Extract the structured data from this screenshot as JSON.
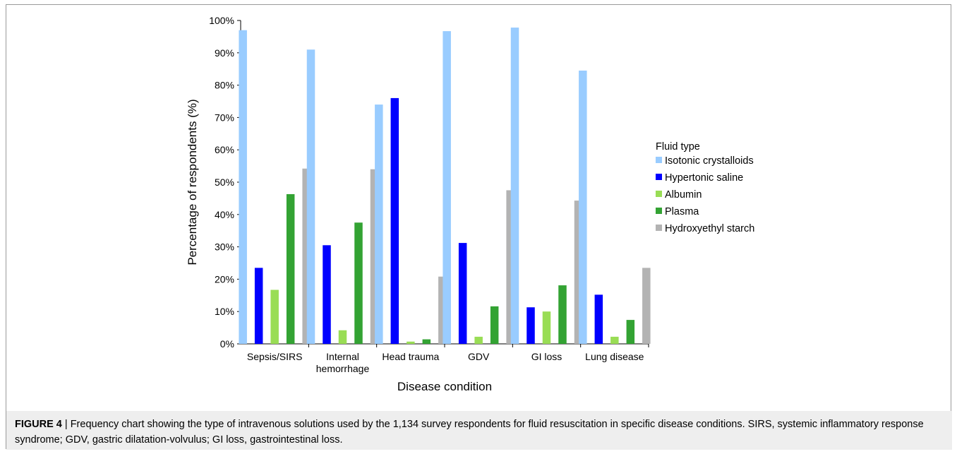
{
  "chart_data": {
    "type": "bar",
    "categories": [
      [
        "Sepsis/SIRS"
      ],
      [
        "Internal",
        "hemorrhage"
      ],
      [
        "Head trauma"
      ],
      [
        "GDV"
      ],
      [
        "GI loss"
      ],
      [
        "Lung disease"
      ]
    ],
    "series": [
      {
        "name": "Isotonic crystalloids",
        "color": "#99ccff",
        "values": [
          97,
          91,
          74,
          96.7,
          97.8,
          84.5
        ]
      },
      {
        "name": "Hypertonic saline",
        "color": "#0000ff",
        "values": [
          23.5,
          30.5,
          76,
          31.2,
          11.3,
          15.2
        ]
      },
      {
        "name": "Albumin",
        "color": "#99dd55",
        "values": [
          16.7,
          4.2,
          0.7,
          2.2,
          10,
          2.2
        ]
      },
      {
        "name": "Plasma",
        "color": "#33a333",
        "values": [
          46.3,
          37.5,
          1.4,
          11.6,
          18.1,
          7.4
        ]
      },
      {
        "name": "Hydroxyethyl starch",
        "color": "#b3b3b3",
        "values": [
          54.2,
          54,
          20.8,
          47.5,
          44.3,
          23.5
        ]
      }
    ],
    "xlabel": "Disease condition",
    "ylabel": "Percentage of respondents (%)",
    "ylim": [
      0,
      100
    ],
    "yticks": [
      "0%",
      "10%",
      "20%",
      "30%",
      "40%",
      "50%",
      "60%",
      "70%",
      "80%",
      "90%",
      "100%"
    ],
    "legend_title": "Fluid type",
    "legend_position": "right",
    "grid": false
  },
  "caption": {
    "label": "FIGURE 4",
    "text": " | Frequency chart showing the type of intravenous solutions used by the 1,134 survey respondents for fluid resuscitation in specific disease conditions. SIRS, systemic inflammatory response syndrome; GDV, gastric dilatation-volvulus; GI loss, gastrointestinal loss."
  }
}
